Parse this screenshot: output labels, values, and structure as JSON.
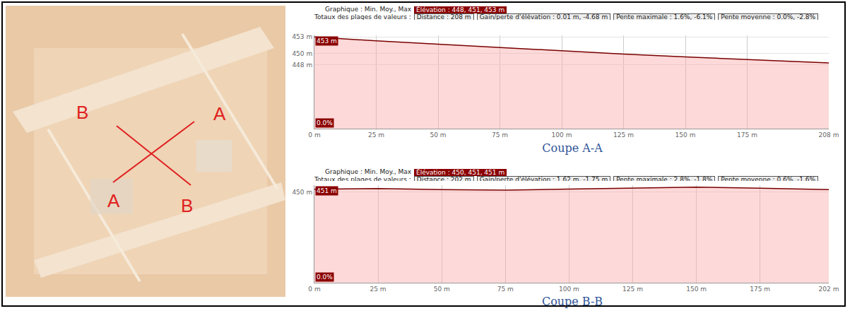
{
  "map": {
    "labels": [
      "B",
      "A",
      "A",
      "B"
    ],
    "color": "#e02020"
  },
  "chart_data": [
    {
      "type": "area",
      "title": "Coupe A-A",
      "header": [
        "Graphique : Min. Moy., Max",
        "Élévation : 448, 451, 453 m",
        "Totaux des plages de valeurs :",
        "Distance : 208 m",
        "Gain/perte d'élévation : 0.01 m, -4.68 m",
        "Pente maximale : 1.6%, -6.1%",
        "Pente moyenne : 0.0%, -2.8%"
      ],
      "annotations": [
        "453 m",
        "0.0%"
      ],
      "x": [
        0,
        25,
        50,
        75,
        100,
        125,
        150,
        175,
        208
      ],
      "values": [
        453.0,
        452.3,
        451.7,
        451.1,
        450.5,
        449.9,
        449.4,
        448.9,
        448.3
      ],
      "color": "#7a0000",
      "xlim": [
        0,
        208
      ],
      "xticks": [
        {
          "value": 0,
          "label": "0 m"
        },
        {
          "value": 25,
          "label": "25 m"
        },
        {
          "value": 50,
          "label": "50 m"
        },
        {
          "value": 75,
          "label": "75 m"
        },
        {
          "value": 100,
          "label": "100 m"
        },
        {
          "value": 125,
          "label": "125 m"
        },
        {
          "value": 150,
          "label": "150 m"
        },
        {
          "value": 175,
          "label": "175 m"
        },
        {
          "value": 208,
          "label": "208 m"
        }
      ],
      "ylim": [
        436.4,
        453.3
      ],
      "yticks": [
        {
          "value": 448,
          "label": "448 m"
        },
        {
          "value": 450,
          "label": "450 m"
        },
        {
          "value": 453,
          "label": "453 m"
        }
      ],
      "grid": true
    },
    {
      "type": "area",
      "title": "Coupe B-B",
      "header": [
        "Graphique : Min. Moy., Max",
        "Élévation : 450, 451, 451 m",
        "Totaux des plages de valeurs :",
        "Distance : 202 m",
        "Gain/perte d'élévation : 1.62 m, -1.75 m",
        "Pente maximale : 2.8%, -1.8%",
        "Pente moyenne : 0.6%, -1.6%"
      ],
      "annotations": [
        "451 m",
        "0.0%"
      ],
      "x": [
        0,
        25,
        50,
        75,
        100,
        125,
        150,
        175,
        202
      ],
      "values": [
        451.0,
        451.3,
        450.9,
        450.7,
        451.1,
        451.5,
        451.8,
        451.4,
        450.9
      ],
      "color": "#7a0000",
      "xlim": [
        0,
        202
      ],
      "xticks": [
        {
          "value": 0,
          "label": "0 m"
        },
        {
          "value": 25,
          "label": "25 m"
        },
        {
          "value": 50,
          "label": "50 m"
        },
        {
          "value": 75,
          "label": "75 m"
        },
        {
          "value": 100,
          "label": "100 m"
        },
        {
          "value": 125,
          "label": "125 m"
        },
        {
          "value": 150,
          "label": "150 m"
        },
        {
          "value": 175,
          "label": "175 m"
        },
        {
          "value": 202,
          "label": "202 m"
        }
      ],
      "ylim": [
        417,
        452.5
      ],
      "yticks": [
        {
          "value": 450,
          "label": "450 m"
        }
      ],
      "grid": true
    }
  ]
}
